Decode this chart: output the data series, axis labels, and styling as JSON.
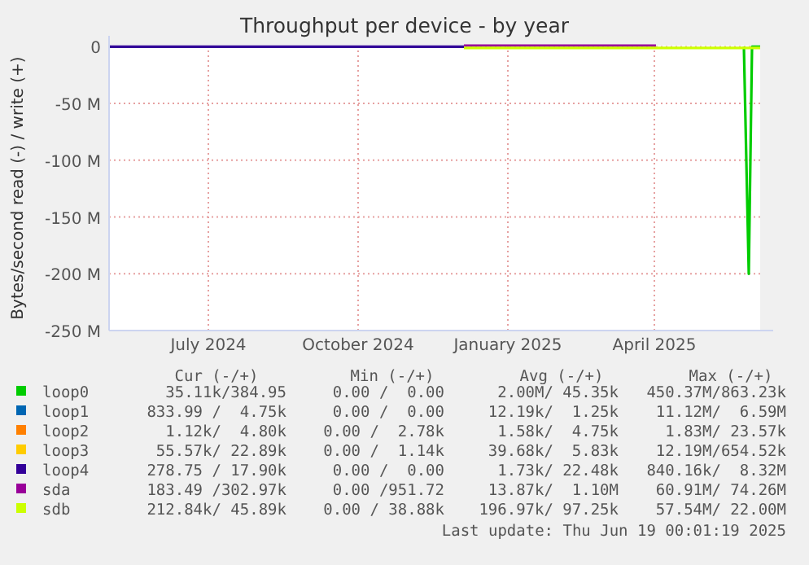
{
  "chart_data": {
    "type": "line",
    "title": "Throughput per device - by year",
    "ylabel": "Bytes/second read (-) / write (+)",
    "xlim": [
      "2024-05-01",
      "2025-06-05"
    ],
    "xticks": [
      {
        "value": "2024-07-01",
        "label": "July 2024"
      },
      {
        "value": "2024-10-01",
        "label": "October 2024"
      },
      {
        "value": "2025-01-01",
        "label": "January 2025"
      },
      {
        "value": "2025-04-01",
        "label": "April 2025"
      }
    ],
    "ylim": [
      -250,
      1
    ],
    "yticks": [
      {
        "value": 0,
        "label": "0"
      },
      {
        "value": -50,
        "label": "-50 M"
      },
      {
        "value": -100,
        "label": "-100 M"
      },
      {
        "value": -150,
        "label": "-150 M"
      },
      {
        "value": -200,
        "label": "-200 M"
      },
      {
        "value": -250,
        "label": "-250 M"
      }
    ],
    "grid": true,
    "legend": "bottom",
    "marker": "none",
    "line_style": "solid",
    "series": [
      {
        "name": "loop0",
        "color": "#00cc00",
        "x": [
          "2025-05-26",
          "2025-05-29",
          "2025-05-31",
          "2025-06-05"
        ],
        "values": [
          0,
          -200,
          0,
          0
        ]
      },
      {
        "name": "loop1",
        "color": "#0066b3"
      },
      {
        "name": "loop2",
        "color": "#ff8000"
      },
      {
        "name": "loop3",
        "color": "#ffcc00"
      },
      {
        "name": "loop4",
        "color": "#330099",
        "x": [
          "2024-05-01",
          "2024-12-05"
        ],
        "values": [
          0,
          0
        ]
      },
      {
        "name": "sda",
        "color": "#990099",
        "x": [
          "2024-12-05",
          "2025-04-02"
        ],
        "values": [
          1,
          1
        ]
      },
      {
        "name": "sdb",
        "color": "#ccff00",
        "x": [
          "2024-12-05",
          "2025-06-05"
        ],
        "values": [
          -1,
          -1
        ]
      }
    ],
    "annotations": [
      "Cur (-/+)",
      "Min (-/+)",
      "Avg (-/+)",
      "Max (-/+)",
      "35.11k/384.95",
      "0.00 /  0.00",
      "2.00M/ 45.35k",
      "450.37M/863.23k",
      "833.99 /  4.75k",
      "0.00 /  0.00",
      "12.19k/  1.25k",
      "11.12M/  6.59M",
      "1.12k/  4.80k",
      "0.00 /  2.78k",
      "1.58k/  4.75k",
      "1.83M/ 23.57k",
      "55.57k/ 22.89k",
      "0.00 /  1.14k",
      "39.68k/  5.83k",
      "12.19M/654.52k",
      "278.75 / 17.90k",
      "0.00 /  0.00",
      "1.73k/ 22.48k",
      "840.16k/  8.32M",
      "183.49 /302.97k",
      "0.00 /951.72",
      "13.87k/  1.10M",
      "60.91M/ 74.26M",
      "212.84k/ 45.89k",
      "0.00 / 38.88k",
      "196.97k/ 97.25k",
      "57.54M/ 22.00M",
      "Last update: Thu Jun 19 00:01:19 2025"
    ]
  }
}
